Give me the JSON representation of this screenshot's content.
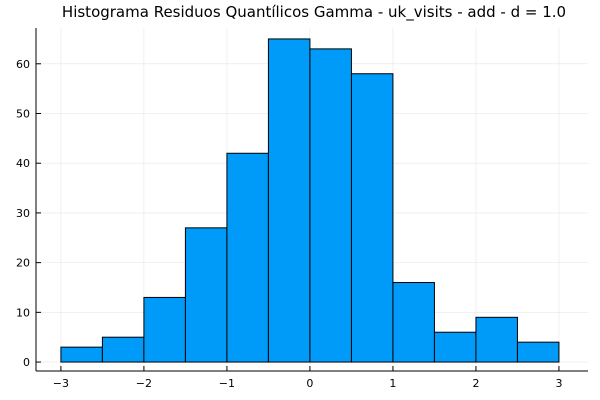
{
  "chart_data": {
    "type": "bar",
    "title": "Histograma Residuos Quantílicos Gamma - uk_visits - add - d = 1.0",
    "xlabel": "",
    "ylabel": "",
    "bin_edges": [
      -3.0,
      -2.5,
      -2.0,
      -1.5,
      -1.0,
      -0.5,
      0.0,
      0.5,
      1.0,
      1.5,
      2.0,
      2.5,
      3.0
    ],
    "values": [
      3,
      5,
      13,
      27,
      42,
      65,
      63,
      58,
      16,
      6,
      9,
      4
    ],
    "xlim": [
      -3.3,
      3.35
    ],
    "ylim": [
      -1.8,
      67.2
    ],
    "xticks": [
      -3,
      -2,
      -1,
      0,
      1,
      2,
      3
    ],
    "xtick_labels": [
      "−3",
      "−2",
      "−1",
      "0",
      "1",
      "2",
      "3"
    ],
    "yticks": [
      0,
      10,
      20,
      30,
      40,
      50,
      60
    ],
    "ytick_labels": [
      "0",
      "10",
      "20",
      "30",
      "40",
      "50",
      "60"
    ],
    "grid": true,
    "legend": "none",
    "bar_color": "#009af9",
    "edge_color": "#000000"
  }
}
